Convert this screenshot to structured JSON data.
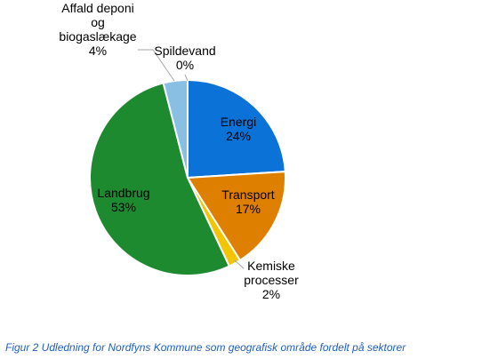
{
  "chart_data": {
    "type": "pie",
    "title": "",
    "slices": [
      {
        "label": "Energi",
        "percent_label": "24%",
        "value": 24,
        "color": "#0b72d8"
      },
      {
        "label": "Transport",
        "percent_label": "17%",
        "value": 17,
        "color": "#de7f00"
      },
      {
        "label": "Kemiske processer",
        "label_lines": [
          "Kemiske",
          "processer"
        ],
        "percent_label": "2%",
        "value": 2,
        "color": "#f2c500"
      },
      {
        "label": "Landbrug",
        "percent_label": "53%",
        "value": 53,
        "color": "#1e8a30"
      },
      {
        "label": "Affald deponi og biogaslækage",
        "label_lines": [
          "Affald deponi",
          "og",
          "biogaslækage"
        ],
        "percent_label": "4%",
        "value": 4,
        "color": "#89bfe3"
      },
      {
        "label": "Spildevand",
        "percent_label": "0%",
        "value": 0,
        "color": "#d9d9d9"
      }
    ]
  },
  "caption": "Figur 2   Udledning for Nordfyns Kommune som geografisk område fordelt på sektorer"
}
